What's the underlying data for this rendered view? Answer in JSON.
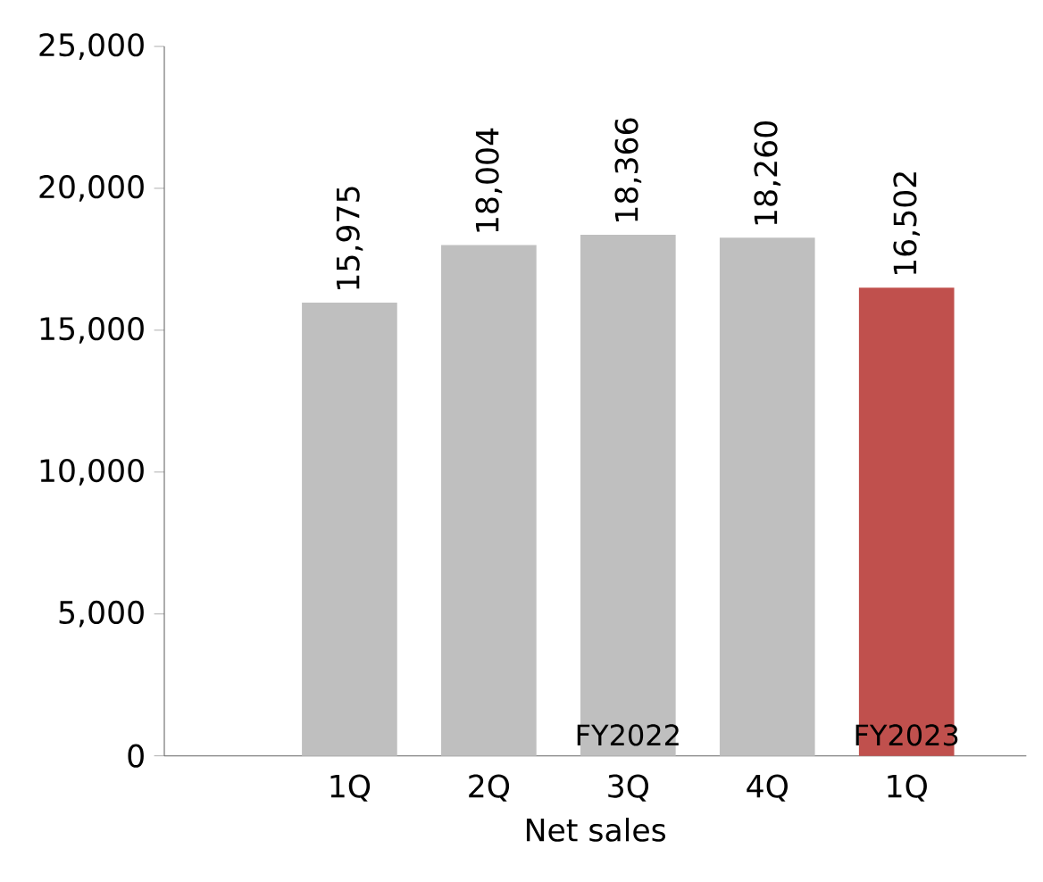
{
  "chart_data": {
    "type": "bar",
    "categories": [
      "1Q",
      "2Q",
      "3Q",
      "4Q",
      "1Q"
    ],
    "values": [
      15975,
      18004,
      18366,
      18260,
      16502
    ],
    "value_labels": [
      "15,975",
      "18,004",
      "18,366",
      "18,260",
      "16,502"
    ],
    "colors": [
      "#bfbfbf",
      "#bfbfbf",
      "#bfbfbf",
      "#bfbfbf",
      "#c0504d"
    ],
    "xlabel": "Net sales",
    "ylim": [
      0,
      25000
    ],
    "yticks": [
      {
        "value": 0,
        "label": "0"
      },
      {
        "value": 5000,
        "label": "5,000"
      },
      {
        "value": 10000,
        "label": "10,000"
      },
      {
        "value": 15000,
        "label": "15,000"
      },
      {
        "value": 20000,
        "label": "20,000"
      },
      {
        "value": 25000,
        "label": "25,000"
      }
    ],
    "annotations": [
      "FY2022",
      "FY2023"
    ]
  }
}
